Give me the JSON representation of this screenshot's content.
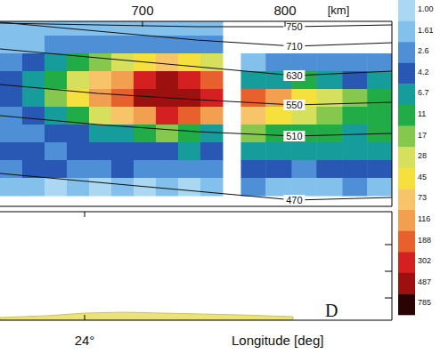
{
  "chart_data": [
    {
      "type": "contour",
      "xlim": [
        23.35,
        26.36
      ],
      "x2lim": [
        600,
        875
      ],
      "x2ticks": [
        700,
        800
      ],
      "x2_label": "[km]",
      "ylim": [
        0,
        20.8
      ],
      "x": [
        23.35,
        24.1,
        24.86,
        25.61,
        26.36
      ],
      "series": [
        {
          "name": "750",
          "values": [
            20.6,
            20.4,
            20.2,
            20.2,
            20.4
          ]
        },
        {
          "name": "710",
          "values": [
            20.7,
            19.7,
            18.7,
            18.0,
            18.4
          ]
        },
        {
          "name": "630",
          "values": [
            17.7,
            16.7,
            15.7,
            14.7,
            15.2
          ]
        },
        {
          "name": "550",
          "values": [
            13.7,
            12.7,
            12.0,
            11.4,
            11.7
          ]
        },
        {
          "name": "510",
          "values": [
            10.2,
            9.2,
            8.4,
            7.9,
            8.2
          ]
        },
        {
          "name": "470",
          "values": [
            3.7,
            2.7,
            1.7,
            0.7,
            1.0
          ]
        }
      ],
      "cells": [
        {
          "x_edges": [
            23.35,
            23.521,
            23.692,
            23.863,
            24.034,
            24.205,
            24.376,
            24.547,
            24.718,
            24.889,
            25.06
          ],
          "y_edges": [
            21.2,
            19.2,
            17.2,
            15.2,
            13.2,
            11.2,
            9.2,
            7.2,
            5.2,
            3.2,
            1.2
          ],
          "values": [
            [
              1.61,
              1.61,
              1.61,
              1.61,
              1.61,
              1.61,
              1.61,
              1.61,
              1.61,
              1.61
            ],
            [
              1.61,
              1.61,
              2.6,
              2.6,
              2.6,
              2.6,
              2.6,
              2.6,
              2.6,
              2.6
            ],
            [
              2.6,
              4.2,
              6.7,
              11,
              17,
              28,
              45,
              73,
              45,
              28
            ],
            [
              4.2,
              6.7,
              11,
              28,
              73,
              116,
              302,
              487,
              302,
              188
            ],
            [
              4.2,
              6.7,
              17,
              45,
              116,
              188,
              487,
              487,
              487,
              302
            ],
            [
              2.6,
              4.2,
              6.7,
              11,
              28,
              73,
              116,
              302,
              188,
              116
            ],
            [
              2.6,
              2.6,
              4.2,
              4.2,
              6.7,
              6.7,
              11,
              17,
              11,
              6.7
            ],
            [
              4.2,
              4.2,
              2.6,
              4.2,
              4.2,
              4.2,
              4.2,
              4.2,
              6.7,
              4.2
            ],
            [
              2.6,
              4.2,
              4.2,
              2.6,
              2.6,
              4.2,
              2.6,
              2.6,
              2.6,
              2.6
            ],
            [
              1.61,
              1.61,
              1,
              1.61,
              1,
              1.61,
              1,
              1.61,
              1,
              1.61
            ]
          ]
        },
        {
          "x_edges": [
            25.2,
            25.39,
            25.59,
            25.78,
            25.98,
            26.17,
            26.36
          ],
          "y_edges": [
            17.2,
            15.2,
            13.2,
            11.2,
            9.2,
            7.2,
            5.2,
            3.2,
            1.2
          ],
          "values": [
            [
              1.61,
              2.6,
              2.6,
              2.6,
              2.6,
              2.6
            ],
            [
              6.7,
              6.7,
              11,
              6.7,
              4.2,
              6.7
            ],
            [
              188,
              116,
              45,
              28,
              17,
              11
            ],
            [
              73,
              45,
              28,
              17,
              11,
              11
            ],
            [
              17,
              11,
              11,
              11,
              6.7,
              11
            ],
            [
              6.7,
              6.7,
              6.7,
              6.7,
              6.7,
              6.7
            ],
            [
              4.2,
              4.2,
              2.6,
              4.2,
              4.2,
              4.2
            ],
            [
              2.6,
              1.61,
              1.61,
              1.61,
              2.6,
              1.61
            ]
          ]
        }
      ],
      "colorbar": {
        "ticks": [
          {
            "value": 1,
            "label": "1.00"
          },
          1.61,
          2.6,
          4.2,
          6.7,
          11,
          17,
          28,
          45,
          73,
          116,
          188,
          302,
          487,
          785
        ],
        "colors": [
          "#aad8f2",
          "#84c0ec",
          "#4f8fd6",
          "#2858b4",
          "#169c9a",
          "#22ac48",
          "#86c84e",
          "#d6e05c",
          "#f6e03e",
          "#f8c46a",
          "#f2a050",
          "#e8602e",
          "#d42020",
          "#9c1010",
          "#2a0404"
        ]
      }
    },
    {
      "type": "area",
      "x_label": "Longitude [deg]",
      "xlim": [
        23.35,
        26.36
      ],
      "xticks": [
        {
          "value": 24,
          "label": "24°"
        }
      ],
      "ylim": [
        0,
        12.2
      ],
      "yticks": [
        2.5,
        5.5,
        8.5
      ],
      "tick_labels": "x",
      "x": [
        23.35,
        23.7,
        24.0,
        24.3,
        24.6,
        24.9,
        25.2,
        25.6
      ],
      "values": [
        0.3,
        0.5,
        0.8,
        0.9,
        0.8,
        0.7,
        0.6,
        0.4
      ],
      "color": "#ece27a",
      "annotations": [
        "D"
      ]
    }
  ]
}
